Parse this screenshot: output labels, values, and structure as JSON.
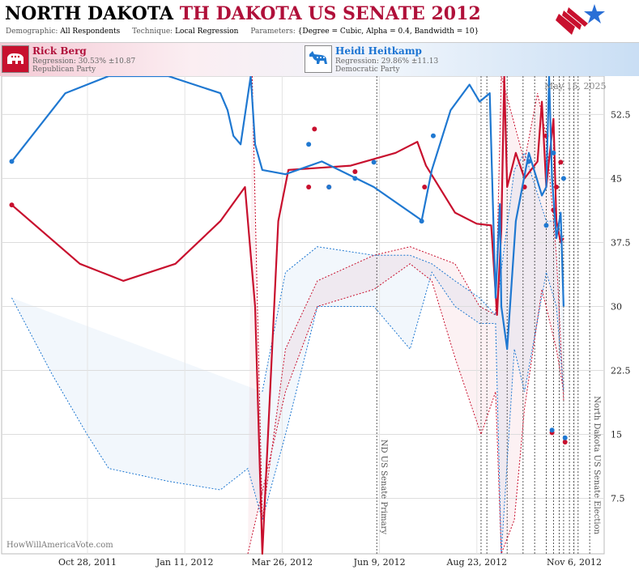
{
  "header": {
    "title_state": "NORTH DAKOTA",
    "title_race": "TH DAKOTA US SENATE 2012",
    "demographic_label": "Demographic:",
    "demographic_value": "All Respondents",
    "technique_label": "Technique:",
    "technique_value": "Local Regression",
    "parameters_label": "Parameters:",
    "parameters_value": "{Degree = Cubic, Alpha = 0.4, Bandwidth = 10}"
  },
  "candidates": [
    {
      "name": "Rick Berg",
      "regression": "Regression: 30.53% ±10.87",
      "party": "Republican Party",
      "color": "#c8102e"
    },
    {
      "name": "Heidi Heitkamp",
      "regression": "Regression: 29.86% ±11.13",
      "party": "Democratic Party",
      "color": "#1f78d1"
    }
  ],
  "current_date": "May 15, 2025",
  "watermark": "HowWillAmericaVote.com",
  "chart_data": {
    "type": "line",
    "x_tick_labels": [
      "Oct 28, 2011",
      "Jan 11, 2012",
      "Mar 26, 2012",
      "Jun 9, 2012",
      "Aug 23, 2012",
      "Nov 6, 2012"
    ],
    "x_range": [
      "2011-09-27",
      "2012-11-16"
    ],
    "y_ticks": [
      7.5,
      15,
      22.5,
      30,
      37.5,
      45,
      52.5
    ],
    "ylim": [
      1,
      57
    ],
    "grid": true,
    "events": [
      {
        "date": "2012-06-12",
        "label": "ND US Senate Primary"
      },
      {
        "date": "2012-11-06",
        "label": "North Dakota US Senate Election"
      }
    ],
    "poll_markers": [
      "2012-08-23",
      "2012-08-27",
      "2012-09-10",
      "2012-09-21",
      "2012-09-29",
      "2012-10-07",
      "2012-10-12",
      "2012-10-16",
      "2012-10-19",
      "2012-10-23",
      "2012-10-26",
      "2012-10-29"
    ],
    "series": [
      {
        "name": "Rick Berg",
        "color": "#c8102e",
        "points": [
          [
            "2011-10-04",
            41.9
          ],
          [
            "2012-04-26",
            44
          ],
          [
            "2012-04-30",
            50.8
          ],
          [
            "2012-05-10",
            44
          ],
          [
            "2012-05-28",
            45.8
          ],
          [
            "2012-07-15",
            44
          ],
          [
            "2012-09-22",
            44
          ],
          [
            "2012-10-07",
            50
          ],
          [
            "2012-10-12",
            41.3
          ],
          [
            "2012-10-14",
            44
          ],
          [
            "2012-10-17",
            46.9
          ],
          [
            "2012-10-11",
            15.2
          ],
          [
            "2012-10-20",
            14.1
          ]
        ],
        "trend": [
          [
            "2011-10-04",
            41.9
          ],
          [
            "2011-11-20",
            35
          ],
          [
            "2011-12-20",
            33
          ],
          [
            "2012-01-25",
            35
          ],
          [
            "2012-02-25",
            40
          ],
          [
            "2012-03-13",
            44
          ],
          [
            "2012-03-20",
            30
          ],
          [
            "2012-03-25",
            0
          ],
          [
            "2012-04-05",
            40
          ],
          [
            "2012-04-12",
            46
          ],
          [
            "2012-05-25",
            46.5
          ],
          [
            "2012-06-25",
            48
          ],
          [
            "2012-07-10",
            49.3
          ],
          [
            "2012-07-16",
            46.5
          ],
          [
            "2012-08-05",
            41
          ],
          [
            "2012-08-20",
            39.7
          ],
          [
            "2012-08-30",
            39.5
          ],
          [
            "2012-09-03",
            29
          ],
          [
            "2012-09-06",
            39
          ],
          [
            "2012-09-08",
            57
          ],
          [
            "2012-09-10",
            44
          ],
          [
            "2012-09-16",
            48
          ],
          [
            "2012-09-22",
            45
          ],
          [
            "2012-10-01",
            47
          ],
          [
            "2012-10-04",
            54
          ],
          [
            "2012-10-07",
            44
          ],
          [
            "2012-10-12",
            52
          ],
          [
            "2012-10-14",
            40
          ],
          [
            "2012-10-17",
            37.5
          ],
          [
            "2012-10-19",
            38
          ]
        ],
        "upper": [
          [
            "2012-03-18",
            57
          ],
          [
            "2012-03-25",
            5
          ],
          [
            "2012-04-10",
            25
          ],
          [
            "2012-05-02",
            33
          ],
          [
            "2012-06-10",
            36
          ],
          [
            "2012-07-05",
            37
          ],
          [
            "2012-08-05",
            35
          ],
          [
            "2012-08-22",
            30
          ],
          [
            "2012-09-02",
            29
          ],
          [
            "2012-09-06",
            57
          ],
          [
            "2012-09-22",
            47
          ],
          [
            "2012-10-01",
            55
          ],
          [
            "2012-10-07",
            50
          ],
          [
            "2012-10-14",
            36
          ],
          [
            "2012-10-19",
            19
          ]
        ],
        "lower": [
          [
            "2012-03-15",
            0
          ],
          [
            "2012-04-10",
            20
          ],
          [
            "2012-05-02",
            30
          ],
          [
            "2012-06-10",
            32
          ],
          [
            "2012-07-05",
            35
          ],
          [
            "2012-07-20",
            33
          ],
          [
            "2012-08-05",
            24
          ],
          [
            "2012-08-23",
            15
          ],
          [
            "2012-09-02",
            20
          ],
          [
            "2012-09-06",
            1
          ],
          [
            "2012-09-15",
            5
          ],
          [
            "2012-09-22",
            18
          ],
          [
            "2012-10-04",
            32
          ],
          [
            "2012-10-14",
            25
          ],
          [
            "2012-10-19",
            20
          ]
        ]
      },
      {
        "name": "Heidi Heitkamp",
        "color": "#1f78d1",
        "points": [
          [
            "2011-10-04",
            47
          ],
          [
            "2012-04-26",
            49
          ],
          [
            "2012-05-10",
            44
          ],
          [
            "2012-05-28",
            45
          ],
          [
            "2012-06-10",
            46.9
          ],
          [
            "2012-07-13",
            40
          ],
          [
            "2012-07-21",
            50
          ],
          [
            "2012-09-25",
            47
          ],
          [
            "2012-10-07",
            39.5
          ],
          [
            "2012-10-12",
            48
          ],
          [
            "2012-10-19",
            45
          ],
          [
            "2012-10-11",
            15.5
          ],
          [
            "2012-10-20",
            14.6
          ]
        ],
        "trend": [
          [
            "2011-10-04",
            47
          ],
          [
            "2011-11-10",
            55
          ],
          [
            "2011-12-10",
            60
          ],
          [
            "2012-01-20",
            58
          ],
          [
            "2012-02-25",
            55
          ],
          [
            "2012-03-01",
            53
          ],
          [
            "2012-03-05",
            50
          ],
          [
            "2012-03-10",
            49
          ],
          [
            "2012-03-17",
            60
          ],
          [
            "2012-03-20",
            49
          ],
          [
            "2012-03-25",
            46
          ],
          [
            "2012-04-10",
            45.5
          ],
          [
            "2012-05-05",
            47
          ],
          [
            "2012-06-10",
            44
          ],
          [
            "2012-07-13",
            40.1
          ],
          [
            "2012-07-20",
            46
          ],
          [
            "2012-08-02",
            53
          ],
          [
            "2012-08-15",
            56
          ],
          [
            "2012-08-22",
            54
          ],
          [
            "2012-08-29",
            55
          ],
          [
            "2012-09-02",
            31
          ],
          [
            "2012-09-05",
            42
          ],
          [
            "2012-09-06",
            30
          ],
          [
            "2012-09-10",
            25
          ],
          [
            "2012-09-16",
            40
          ],
          [
            "2012-09-25",
            48
          ],
          [
            "2012-10-04",
            43
          ],
          [
            "2012-10-07",
            44
          ],
          [
            "2012-10-09",
            57
          ],
          [
            "2012-10-11",
            45
          ],
          [
            "2012-10-14",
            38
          ],
          [
            "2012-10-17",
            41
          ],
          [
            "2012-10-19",
            30
          ]
        ],
        "upper": [
          [
            "2012-03-25",
            20
          ],
          [
            "2012-04-10",
            34
          ],
          [
            "2012-05-02",
            37
          ],
          [
            "2012-06-10",
            36
          ],
          [
            "2012-07-05",
            36
          ],
          [
            "2012-07-20",
            35
          ],
          [
            "2012-08-05",
            33
          ],
          [
            "2012-08-22",
            31
          ],
          [
            "2012-09-02",
            29
          ],
          [
            "2012-09-15",
            46
          ],
          [
            "2012-09-22",
            48
          ],
          [
            "2012-10-07",
            40
          ],
          [
            "2012-10-14",
            40
          ],
          [
            "2012-10-19",
            38
          ]
        ],
        "lower": [
          [
            "2011-10-04",
            31
          ],
          [
            "2011-11-01",
            22
          ],
          [
            "2011-11-25",
            15
          ],
          [
            "2011-12-10",
            11
          ],
          [
            "2012-01-20",
            9.5
          ],
          [
            "2012-02-25",
            8.5
          ],
          [
            "2012-03-15",
            11
          ],
          [
            "2012-03-25",
            5
          ],
          [
            "2012-04-10",
            15
          ],
          [
            "2012-05-02",
            30
          ],
          [
            "2012-06-10",
            30
          ],
          [
            "2012-07-05",
            25
          ],
          [
            "2012-07-20",
            34
          ],
          [
            "2012-08-05",
            30
          ],
          [
            "2012-08-22",
            28
          ],
          [
            "2012-09-02",
            28
          ],
          [
            "2012-09-06",
            1
          ],
          [
            "2012-09-15",
            25
          ],
          [
            "2012-09-22",
            20
          ],
          [
            "2012-10-07",
            34
          ],
          [
            "2012-10-14",
            30
          ],
          [
            "2012-10-19",
            20
          ]
        ]
      }
    ]
  }
}
